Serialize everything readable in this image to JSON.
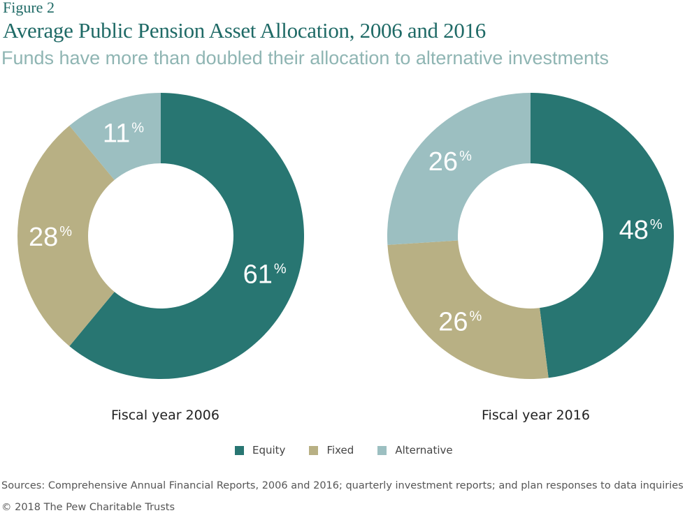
{
  "figure_label": "Figure 2",
  "title": "Average Public Pension Asset Allocation, 2006 and 2016",
  "subtitle": "Funds have more than doubled their allocation to alternative investments",
  "colors": {
    "equity": "#287672",
    "fixed": "#b8b084",
    "alternative": "#9cbfc1"
  },
  "legend": [
    {
      "label": "Equity",
      "color": "#287672"
    },
    {
      "label": "Fixed",
      "color": "#b8b084"
    },
    {
      "label": "Alternative",
      "color": "#9cbfc1"
    }
  ],
  "chart_data": [
    {
      "type": "pie",
      "donut": true,
      "caption": "Fiscal year 2006",
      "slices": [
        {
          "label": "Equity",
          "value": 61,
          "display": "61%"
        },
        {
          "label": "Fixed",
          "value": 28,
          "display": "28%"
        },
        {
          "label": "Alternative",
          "value": 11,
          "display": "11%"
        }
      ]
    },
    {
      "type": "pie",
      "donut": true,
      "caption": "Fiscal year 2016",
      "slices": [
        {
          "label": "Equity",
          "value": 48,
          "display": "48%"
        },
        {
          "label": "Fixed",
          "value": 26,
          "display": "26%"
        },
        {
          "label": "Alternative",
          "value": 26,
          "display": "26%"
        }
      ]
    }
  ],
  "sources": "Sources: Comprehensive Annual Financial Reports, 2006 and 2016; quarterly investment reports; and plan responses to data inquiries",
  "copyright": "© 2018 The Pew Charitable Trusts"
}
